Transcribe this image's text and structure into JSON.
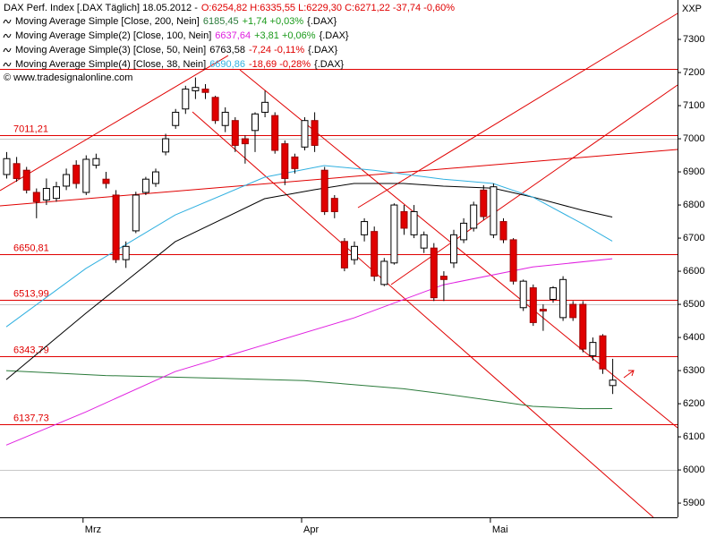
{
  "chart_data": {
    "type": "candlestick",
    "header": {
      "title": "DAX Perf. Index [.DAX Täglich] 18.05.2012 -",
      "quote": "O:6254,82 H:6335,55 L:6229,30 C:6271,22 -37,74 -0,60%"
    },
    "credit": "© www.tradesignalonline.com",
    "axis_unit": "XXP",
    "ylim": [
      5857,
      7419
    ],
    "yticks": [
      5900,
      6000,
      6100,
      6200,
      6300,
      6400,
      6500,
      6600,
      6700,
      6800,
      6900,
      7000,
      7100,
      7200,
      7300
    ],
    "xticks": [
      {
        "value": 8,
        "label": "Mrz"
      },
      {
        "value": 30,
        "label": "Apr"
      },
      {
        "value": 49,
        "label": "Mai"
      }
    ],
    "grid_lines": [
      6000,
      6500,
      7000
    ],
    "levels": [
      {
        "value": 7011.21,
        "label": "7011,21"
      },
      {
        "value": 6650.81,
        "label": "6650,81"
      },
      {
        "value": 6513.99,
        "label": "6513,99"
      },
      {
        "value": 6343.79,
        "label": "6343,79"
      },
      {
        "value": 6137.73,
        "label": "6137,73"
      }
    ],
    "extra_levels": [
      7210
    ],
    "candles": {
      "open": [
        6892,
        6925,
        6905,
        6838,
        6815,
        6820,
        6857,
        6920,
        6838,
        6920,
        6878,
        6830,
        6635,
        6722,
        6838,
        6865,
        6960,
        7040,
        7090,
        7145,
        7150,
        7125,
        7040,
        7055,
        7000,
        7025,
        7080,
        7070,
        6985,
        6945,
        6975,
        7055,
        6905,
        6820,
        6690,
        6635,
        6710,
        6720,
        6560,
        6625,
        6780,
        6710,
        6670,
        6670,
        6585,
        6625,
        6695,
        6730,
        6845,
        6710,
        6750,
        6695,
        6490,
        6550,
        6485,
        6515,
        6460,
        6500,
        6500,
        6345,
        6405,
        6254.82
      ],
      "high": [
        6960,
        6945,
        6915,
        6850,
        6880,
        6870,
        6910,
        6935,
        6950,
        6955,
        6900,
        6845,
        6690,
        6840,
        6885,
        6910,
        7015,
        7090,
        7160,
        7185,
        7165,
        7130,
        7095,
        7065,
        7010,
        7080,
        7145,
        7080,
        6995,
        6955,
        7065,
        7080,
        6915,
        6830,
        6700,
        6690,
        6760,
        6735,
        6640,
        6805,
        6800,
        6800,
        6720,
        6685,
        6600,
        6725,
        6760,
        6810,
        6860,
        6865,
        6760,
        6700,
        6575,
        6560,
        6500,
        6555,
        6585,
        6510,
        6510,
        6400,
        6410,
        6335.55
      ],
      "low": [
        6880,
        6870,
        6835,
        6760,
        6800,
        6810,
        6845,
        6850,
        6830,
        6910,
        6850,
        6625,
        6610,
        6715,
        6830,
        6855,
        6950,
        7030,
        7075,
        7120,
        7120,
        7045,
        7020,
        6960,
        6925,
        6960,
        7065,
        6955,
        6860,
        6895,
        6965,
        6960,
        6770,
        6760,
        6600,
        6620,
        6690,
        6570,
        6555,
        6620,
        6710,
        6700,
        6655,
        6510,
        6510,
        6610,
        6685,
        6720,
        6755,
        6700,
        6685,
        6560,
        6480,
        6435,
        6420,
        6505,
        6450,
        6450,
        6355,
        6330,
        6290,
        6229.3
      ],
      "close": [
        6940,
        6880,
        6845,
        6810,
        6850,
        6855,
        6892,
        6865,
        6938,
        6940,
        6865,
        6635,
        6675,
        6830,
        6878,
        6900,
        7000,
        7080,
        7150,
        7155,
        7140,
        7055,
        7080,
        6980,
        6985,
        7075,
        7110,
        6965,
        6880,
        6910,
        7055,
        6980,
        6780,
        6780,
        6610,
        6675,
        6750,
        6585,
        6630,
        6800,
        6730,
        6780,
        6710,
        6520,
        6575,
        6710,
        6745,
        6800,
        6765,
        6855,
        6695,
        6570,
        6570,
        6445,
        6480,
        6550,
        6575,
        6460,
        6365,
        6385,
        6305,
        6271.22
      ]
    },
    "series": [
      {
        "name": "Moving Average Simple [Close, 200, Nein]",
        "color": "#2a7a3a",
        "value_label": "6185,45",
        "change": "+1,74 +0,03%",
        "change_color": "#1a9a1a",
        "suffix": "{.DAX}",
        "x": [
          0,
          10,
          20,
          30,
          40,
          44,
          50,
          53,
          58,
          61
        ],
        "values": [
          6300,
          6285,
          6278,
          6270,
          6245,
          6230,
          6205,
          6192,
          6185,
          6185.45
        ]
      },
      {
        "name": "Moving Average Simple(2) [Close, 100, Nein]",
        "color": "#e020e0",
        "value_label": "6637,64",
        "change": "+3,81 +0,06%",
        "change_color": "#1a9a1a",
        "suffix": "{.DAX}",
        "x": [
          0,
          8,
          17,
          26,
          35,
          44,
          53,
          61
        ],
        "values": [
          6075,
          6175,
          6297,
          6378,
          6459,
          6559,
          6613,
          6637.64
        ]
      },
      {
        "name": "Moving Average Simple(3) [Close, 50, Nein]",
        "color": "#000000",
        "value_label": "6763,58",
        "change": "-7,24 -0,11%",
        "change_color": "#e00000",
        "suffix": "{.DAX}",
        "x": [
          0,
          8,
          17,
          26,
          31,
          35,
          40,
          44,
          49,
          53,
          58,
          61
        ],
        "values": [
          6273,
          6473,
          6689,
          6819,
          6846,
          6865,
          6865,
          6857,
          6851,
          6824,
          6784,
          6763.58
        ]
      },
      {
        "name": "Moving Average Simple(4) [Close, 38, Nein]",
        "color": "#30b0e0",
        "value_label": "6690,86",
        "change": "-18,69 -0,28%",
        "change_color": "#e00000",
        "suffix": "{.DAX}",
        "x": [
          0,
          8,
          17,
          26,
          32,
          37,
          44,
          49,
          53,
          58,
          61
        ],
        "values": [
          6432,
          6608,
          6770,
          6884,
          6919,
          6905,
          6878,
          6865,
          6824,
          6743,
          6690.86
        ]
      }
    ]
  }
}
